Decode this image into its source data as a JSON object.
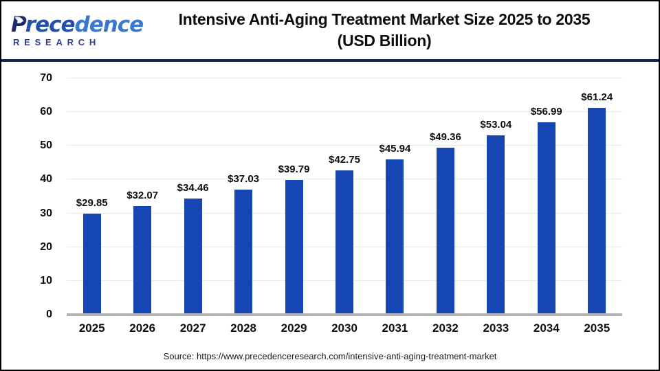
{
  "logo": {
    "word_start": "P",
    "word_mid": "rece",
    "word_end": "dence",
    "subtitle": "RESEARCH"
  },
  "header": {
    "title_line1": "Intensive Anti-Aging Treatment Market Size 2025 to 2035",
    "title_line2": "(USD Billion)"
  },
  "chart_data": {
    "type": "bar",
    "title": "Intensive Anti-Aging Treatment Market Size 2025 to 2035 (USD Billion)",
    "categories": [
      "2025",
      "2026",
      "2027",
      "2028",
      "2029",
      "2030",
      "2031",
      "2032",
      "2033",
      "2034",
      "2035"
    ],
    "values": [
      29.85,
      32.07,
      34.46,
      37.03,
      39.79,
      42.75,
      45.94,
      49.36,
      53.04,
      56.99,
      61.24
    ],
    "value_labels": [
      "$29.85",
      "$32.07",
      "$34.46",
      "$37.03",
      "$39.79",
      "$42.75",
      "$45.94",
      "$49.36",
      "$53.04",
      "$56.99",
      "$61.24"
    ],
    "xlabel": "",
    "ylabel": "",
    "ylim": [
      0,
      70
    ],
    "yticks": [
      0,
      10,
      20,
      30,
      40,
      50,
      60,
      70
    ],
    "grid": true,
    "legend": false,
    "bar_color": "#1645b4",
    "gridline_color": "#eaeaea",
    "baseline_color": "#b3b3b3"
  },
  "footer": {
    "source": "Source: https://www.precedenceresearch.com/intensive-anti-aging-treatment-market"
  }
}
